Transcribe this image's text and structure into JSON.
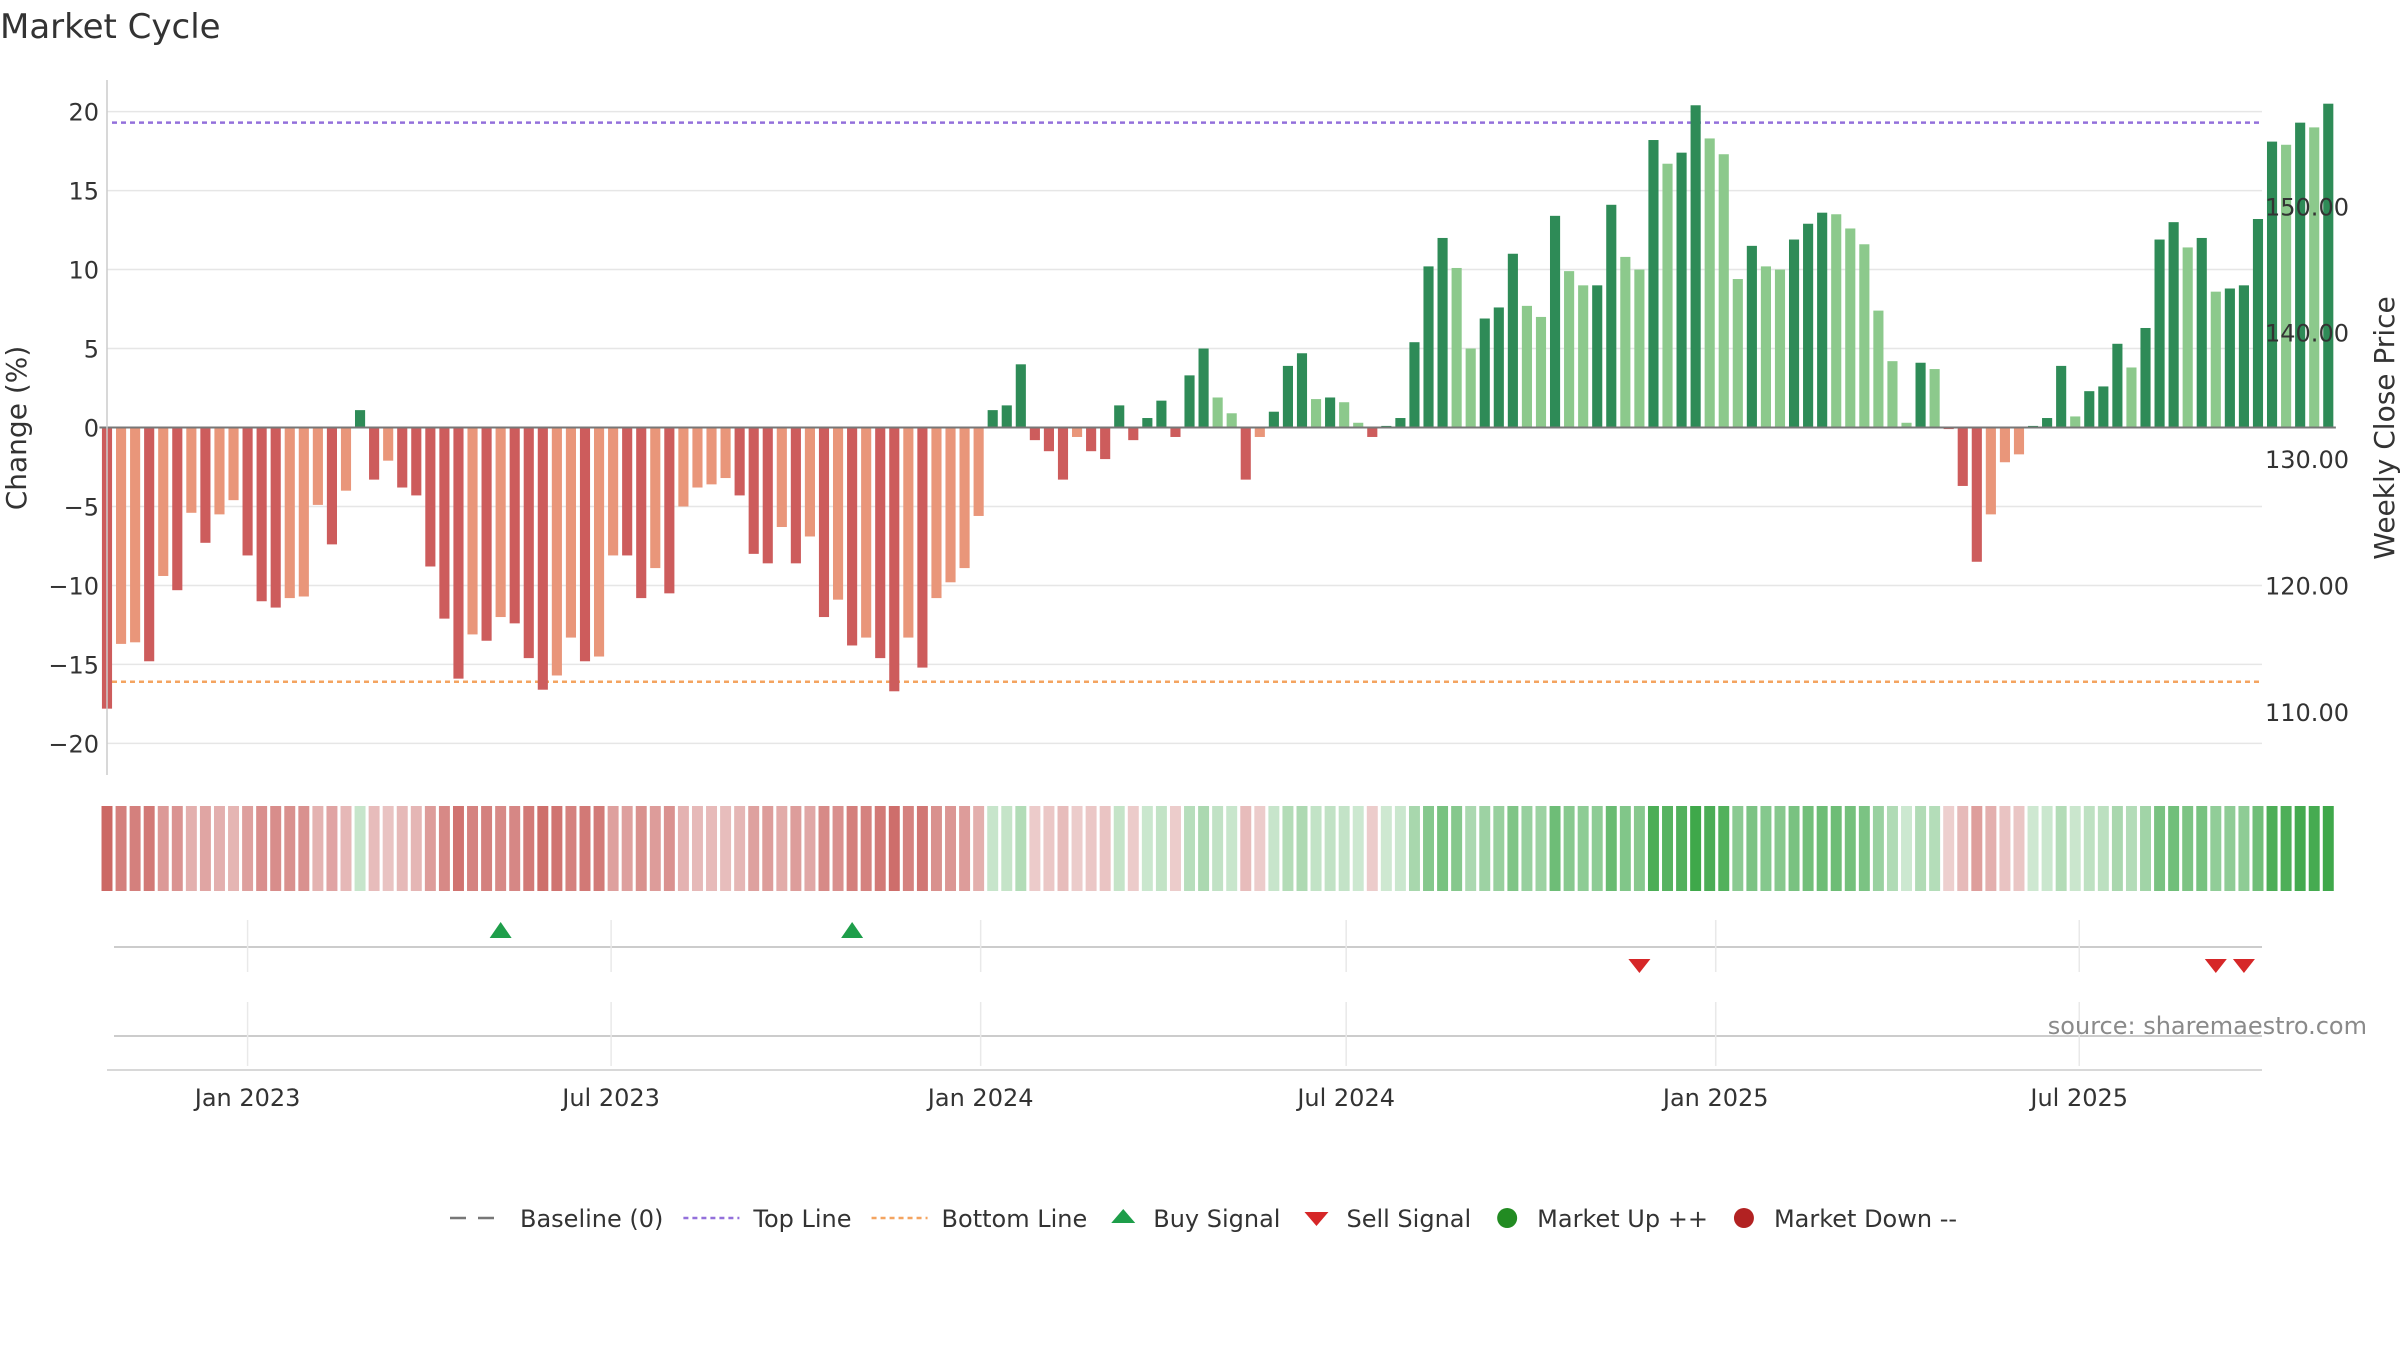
{
  "chart_data": {
    "type": "bar",
    "title": "Market Cycle",
    "ylabel_left": "Change (%)",
    "ylabel_right": "Weekly Close Price",
    "ylim_left": [
      -22,
      22
    ],
    "yticks_left": [
      20,
      15,
      10,
      5,
      0,
      -5,
      -10,
      -15,
      -20
    ],
    "ytick_labels_left": [
      "20",
      "15",
      "10",
      "5",
      "0",
      "−5",
      "−10",
      "−15",
      "−20"
    ],
    "ylim_right": [
      105,
      160
    ],
    "yticks_right": [
      150,
      140,
      130,
      120,
      110
    ],
    "ytick_labels_right": [
      "150.00",
      "140.00",
      "130.00",
      "120.00",
      "110.00"
    ],
    "x_start": "2022-10-23",
    "x_end": "2025-09-30",
    "x_ticks": [
      {
        "date": "2023-01-01",
        "label": "Jan 2023"
      },
      {
        "date": "2023-07-01",
        "label": "Jul 2023"
      },
      {
        "date": "2024-01-01",
        "label": "Jan 2024"
      },
      {
        "date": "2024-07-01",
        "label": "Jul 2024"
      },
      {
        "date": "2025-01-01",
        "label": "Jan 2025"
      },
      {
        "date": "2025-07-01",
        "label": "Jul 2025"
      }
    ],
    "first_week": "2022-10-23",
    "week_step_days": 7,
    "top_line": 19.3,
    "bottom_line": -16.1,
    "values": [
      -17.8,
      -13.7,
      -13.6,
      -14.8,
      -9.4,
      -10.3,
      -5.4,
      -7.3,
      -5.5,
      -4.6,
      -8.1,
      -11.0,
      -11.4,
      -10.8,
      -10.7,
      -4.9,
      -7.4,
      -4.0,
      1.1,
      -3.3,
      -2.1,
      -3.8,
      -4.3,
      -8.8,
      -12.1,
      -15.9,
      -13.1,
      -13.5,
      -12.0,
      -12.4,
      -14.6,
      -16.6,
      -15.7,
      -13.3,
      -14.8,
      -14.5,
      -8.1,
      -8.1,
      -10.8,
      -8.9,
      -10.5,
      -5.0,
      -3.8,
      -3.6,
      -3.2,
      -4.3,
      -8.0,
      -8.6,
      -6.3,
      -8.6,
      -6.9,
      -12.0,
      -10.9,
      -13.8,
      -13.3,
      -14.6,
      -16.7,
      -13.3,
      -15.2,
      -10.8,
      -9.8,
      -8.9,
      -5.6,
      1.1,
      1.4,
      4.0,
      -0.8,
      -1.5,
      -3.3,
      -0.6,
      -1.5,
      -2.0,
      1.4,
      -0.8,
      0.6,
      1.7,
      -0.6,
      3.3,
      5.0,
      1.9,
      0.9,
      -3.3,
      -0.6,
      1.0,
      3.9,
      4.7,
      1.8,
      1.9,
      1.6,
      0.3,
      -0.6,
      0.1,
      0.6,
      5.4,
      10.2,
      12.0,
      10.1,
      5.0,
      6.9,
      7.6,
      11.0,
      7.7,
      7.0,
      13.4,
      9.9,
      9.0,
      9.0,
      14.1,
      10.8,
      10.0,
      18.2,
      16.7,
      17.4,
      20.4,
      18.3,
      17.3,
      9.4,
      11.5,
      10.2,
      10.0,
      11.9,
      12.9,
      13.6,
      13.5,
      12.6,
      11.6,
      7.4,
      4.2,
      0.3,
      4.1,
      3.7,
      -0.1,
      -3.7,
      -8.5,
      -5.5,
      -2.2,
      -1.7,
      0.1,
      0.6,
      3.9,
      0.7,
      2.3,
      2.6,
      5.3,
      3.8,
      6.3,
      11.9,
      13.0,
      11.4,
      12.0,
      8.6,
      8.8,
      9.0,
      13.2,
      18.1,
      17.9,
      19.3,
      19.0,
      20.5
    ],
    "signals": [
      {
        "type": "buy",
        "date": "2023-05-07"
      },
      {
        "type": "buy",
        "date": "2023-10-29"
      },
      {
        "type": "sell",
        "date": "2024-11-24"
      },
      {
        "type": "sell",
        "date": "2025-09-07"
      },
      {
        "type": "sell",
        "date": "2025-09-21"
      }
    ],
    "source": "source: sharemaestro.com",
    "legend_position": "bottom",
    "legend": [
      {
        "key": "baseline",
        "label": "Baseline (0)"
      },
      {
        "key": "top",
        "label": "Top Line"
      },
      {
        "key": "bottom",
        "label": "Bottom Line"
      },
      {
        "key": "buy",
        "label": "Buy Signal"
      },
      {
        "key": "sell",
        "label": "Sell Signal"
      },
      {
        "key": "up",
        "label": "Market Up ++"
      },
      {
        "key": "down",
        "label": "Market Down --"
      }
    ],
    "colors": {
      "pos_dark": "#2e8b57",
      "pos_light": "#8cc98c",
      "neg_dark": "#cd5c5c",
      "neg_light": "#e9967a",
      "heat_pos_max": "#3fa84a",
      "heat_neg_max": "#c85b57",
      "top_line": "#9370db",
      "bottom_line": "#f4a460",
      "baseline": "#777777",
      "buy": "#1e9e4a",
      "sell": "#d62728",
      "market_up": "#228b22",
      "market_down": "#b22222",
      "grid": "#e6e6e6"
    }
  }
}
